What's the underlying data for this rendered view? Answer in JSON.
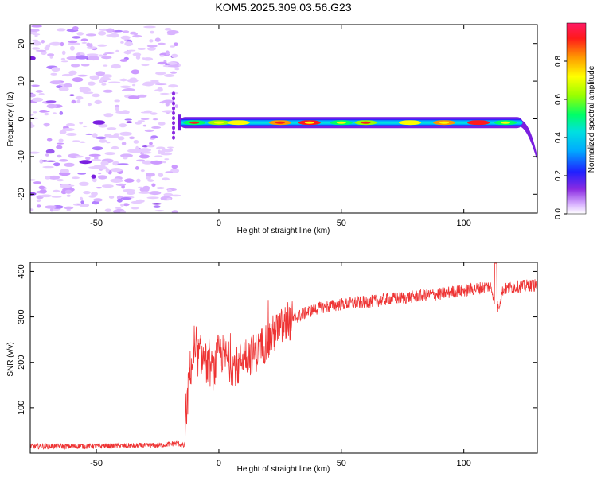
{
  "title": "KOM5.2025.309.03.56.G23",
  "chart_data": [
    {
      "type": "heatmap",
      "title": "KOM5.2025.309.03.56.G23",
      "xlabel": "Height of straight line (km)",
      "ylabel": "Frequency (Hz)",
      "xlim": [
        -77,
        130
      ],
      "ylim": [
        -25,
        25
      ],
      "xticks": [
        -50,
        0,
        50,
        100
      ],
      "yticks": [
        -20,
        -10,
        0,
        10,
        20
      ],
      "colorbar": {
        "label": "Normalized spectral amplitude",
        "range": [
          0,
          1
        ],
        "ticks": [
          "0.0",
          "0.2",
          "0.4",
          "0.6",
          "0.8"
        ],
        "colormap": [
          "#ffffff",
          "#cc99ff",
          "#7a1fe0",
          "#2a2aff",
          "#00aaff",
          "#00e0e0",
          "#00ff66",
          "#99ff00",
          "#ffff00",
          "#ff9900",
          "#ff1a1a",
          "#ff1a66"
        ]
      },
      "noise_region_km": [
        -77,
        -16
      ],
      "signal_band": {
        "x_start_km": -16,
        "x_end_km": 124,
        "center_freq_hz": -1,
        "hotspots_km": [
          -10,
          0,
          8,
          25,
          37,
          50,
          60,
          78,
          92,
          106,
          117
        ],
        "tail_end_freq_hz": -10
      }
    },
    {
      "type": "line",
      "xlabel": "Height of straight line (km)",
      "ylabel": "SNR (v/v)",
      "xlim": [
        -77,
        130
      ],
      "ylim": [
        0,
        420
      ],
      "xticks": [
        -50,
        0,
        50,
        100
      ],
      "yticks": [
        100,
        200,
        300,
        400
      ],
      "color": "#ee3333",
      "series": [
        {
          "name": "SNR",
          "x": [
            -77,
            -60,
            -40,
            -25,
            -17,
            -14,
            -12,
            -10,
            -7,
            -5,
            -2,
            0,
            3,
            5,
            8,
            10,
            13,
            16,
            20,
            24,
            28,
            32,
            36,
            40,
            45,
            50,
            55,
            60,
            65,
            70,
            75,
            80,
            85,
            90,
            95,
            100,
            105,
            108,
            111,
            113,
            114,
            116,
            120,
            125,
            130
          ],
          "values": [
            15,
            15,
            16,
            17,
            22,
            15,
            180,
            210,
            215,
            195,
            180,
            225,
            210,
            195,
            190,
            220,
            215,
            225,
            250,
            270,
            285,
            300,
            310,
            318,
            323,
            328,
            330,
            333,
            336,
            340,
            342,
            345,
            348,
            350,
            355,
            358,
            362,
            365,
            368,
            330,
            320,
            360,
            365,
            368,
            370
          ]
        }
      ]
    }
  ]
}
